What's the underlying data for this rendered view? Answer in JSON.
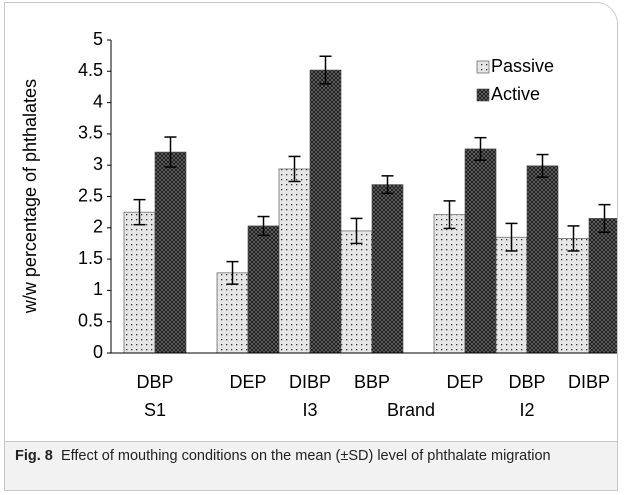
{
  "chart_data": {
    "type": "bar",
    "categories": [
      "DBP",
      "DEP",
      "DIBP",
      "BBP",
      "DEP",
      "DBP",
      "DIBP"
    ],
    "category_groups": [
      "S1",
      "I3",
      "I3",
      "I3",
      "I2",
      "I2",
      "I2"
    ],
    "xlabel": "Brand",
    "ylabel": "w/w percentage of phthalates",
    "series": [
      {
        "name": "Passive",
        "color": "#e6e6e6",
        "values": [
          2.25,
          1.28,
          2.94,
          1.95,
          2.21,
          1.85,
          1.83
        ],
        "errors": [
          0.2,
          0.18,
          0.2,
          0.2,
          0.22,
          0.22,
          0.2
        ]
      },
      {
        "name": "Active",
        "color": "#5a5a5a",
        "values": [
          3.21,
          2.03,
          4.52,
          2.69,
          3.26,
          2.99,
          2.15
        ],
        "errors": [
          0.24,
          0.15,
          0.22,
          0.14,
          0.18,
          0.18,
          0.22
        ]
      }
    ],
    "ylim": [
      0,
      5
    ],
    "yticks": [
      0,
      0.5,
      1,
      1.5,
      2,
      2.5,
      3,
      3.5,
      4,
      4.5,
      5
    ],
    "legend": "upper right"
  },
  "caption": {
    "label": "Fig. 8",
    "text": "Effect of mouthing conditions on the mean (±SD) level of phthalate migration"
  }
}
